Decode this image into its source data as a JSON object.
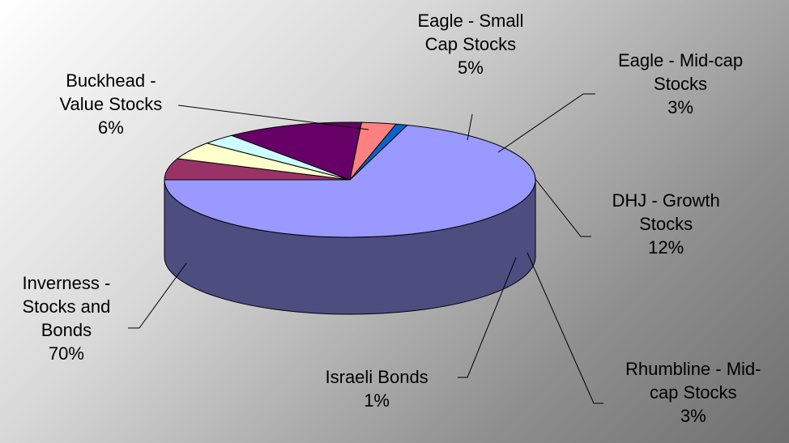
{
  "chart_data": {
    "type": "pie",
    "title": "",
    "three_d": true,
    "legend": "none",
    "slices": [
      {
        "label_lines": [
          "Inverness -",
          "Stocks and",
          "Bonds"
        ],
        "percent_label": "70%",
        "value": 70,
        "color": "#9999ff"
      },
      {
        "label_lines": [
          "Buckhead -",
          "Value Stocks"
        ],
        "percent_label": "6%",
        "value": 6,
        "color": "#993366"
      },
      {
        "label_lines": [
          "Eagle - Small",
          "Cap Stocks"
        ],
        "percent_label": "5%",
        "value": 5,
        "color": "#ffffcc"
      },
      {
        "label_lines": [
          "Eagle - Mid-cap",
          "Stocks"
        ],
        "percent_label": "3%",
        "value": 3,
        "color": "#ccffff"
      },
      {
        "label_lines": [
          "DHJ - Growth",
          "Stocks"
        ],
        "percent_label": "12%",
        "value": 12,
        "color": "#660066"
      },
      {
        "label_lines": [
          "Rhumbline - Mid-",
          "cap Stocks"
        ],
        "percent_label": "3%",
        "value": 3,
        "color": "#ff8080"
      },
      {
        "label_lines": [
          "Israeli Bonds"
        ],
        "percent_label": "1%",
        "value": 1,
        "color": "#0066cc"
      }
    ]
  }
}
